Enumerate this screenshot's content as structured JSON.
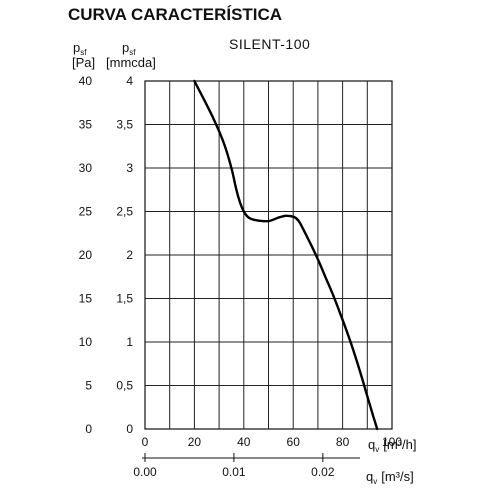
{
  "title": "CURVA CARACTERÍSTICA",
  "chart_data": {
    "type": "line",
    "model": "SILENT-100",
    "y_axes": {
      "left": {
        "symbol": "p",
        "subscript": "sf",
        "unit": "[Pa]",
        "ticks": [
          "0",
          "5",
          "10",
          "15",
          "20",
          "25",
          "30",
          "35",
          "40"
        ],
        "range": [
          0,
          40
        ]
      },
      "right": {
        "symbol": "p",
        "subscript": "sf",
        "unit": "[mmcda]",
        "ticks": [
          "0",
          "0,5",
          "1",
          "1,5",
          "2",
          "2,5",
          "3",
          "3,5",
          "4"
        ],
        "range": [
          0,
          4
        ]
      }
    },
    "x_axes": {
      "primary": {
        "symbol": "q",
        "subscript": "v",
        "unit": "[m³/h]",
        "ticks": [
          "0",
          "20",
          "40",
          "60",
          "80",
          "100"
        ],
        "range": [
          0,
          100
        ]
      },
      "secondary": {
        "symbol": "q",
        "subscript": "v",
        "unit": "[m³/s]",
        "ticks": [
          "0.00",
          "0.01",
          "0.02"
        ],
        "tick_values": [
          0,
          0.01,
          0.02
        ]
      }
    },
    "grid": true,
    "series": [
      {
        "x": [
          20,
          24,
          28,
          32,
          35,
          37,
          38.5,
          40,
          42,
          45,
          50,
          54,
          57,
          60,
          62,
          64,
          67,
          70,
          73,
          76,
          79,
          82,
          85,
          88,
          91,
          94
        ],
        "y": [
          4.0,
          3.78,
          3.55,
          3.28,
          3.0,
          2.75,
          2.6,
          2.5,
          2.43,
          2.4,
          2.39,
          2.43,
          2.45,
          2.44,
          2.4,
          2.3,
          2.13,
          1.95,
          1.75,
          1.55,
          1.33,
          1.1,
          0.85,
          0.57,
          0.28,
          0.0
        ]
      }
    ]
  }
}
